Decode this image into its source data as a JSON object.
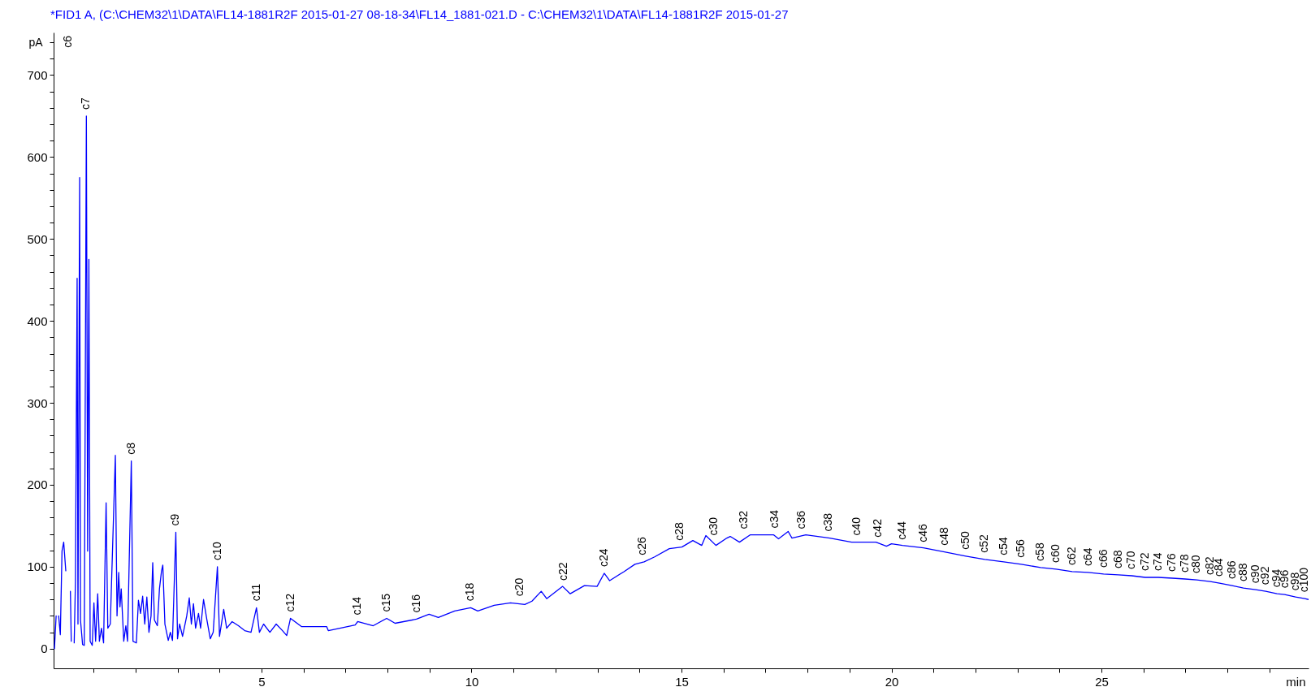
{
  "chart_data": {
    "type": "line",
    "title": "*FID1 A,  (C:\\CHEM32\\1\\DATA\\FL14-1881R2F 2015-01-27 08-18-34\\FL14_1881-021.D - C:\\CHEM32\\1\\DATA\\FL14-1881R2F 2015-01-27",
    "xlabel": "min",
    "ylabel": "pA",
    "x": [
      0.07,
      0.11,
      0.13,
      0.15,
      0.17,
      0.21,
      0.25,
      0.29,
      0.34,
      0.36,
      0.38,
      0.39,
      0.41,
      0.44,
      0.45,
      0.47,
      0.49,
      0.52,
      0.54,
      0.57,
      0.61,
      0.63,
      0.67,
      0.69,
      0.74,
      0.78,
      0.83,
      0.86,
      0.89,
      0.92,
      0.97,
      1.01,
      1.05,
      1.1,
      1.14,
      1.19,
      1.24,
      1.3,
      1.34,
      1.4,
      1.52,
      1.56,
      1.6,
      1.63,
      1.66,
      1.72,
      1.77,
      1.81,
      1.9,
      1.94,
      2.02,
      2.07,
      2.12,
      2.17,
      2.22,
      2.27,
      2.32,
      2.37,
      2.41,
      2.45,
      2.52,
      2.57,
      2.62,
      2.65,
      2.7,
      2.78,
      2.83,
      2.88,
      2.96,
      3.0,
      3.05,
      3.12,
      3.22,
      3.28,
      3.33,
      3.38,
      3.43,
      3.5,
      3.55,
      3.62,
      3.7,
      3.78,
      3.85,
      3.95,
      4.0,
      4.1,
      4.17,
      4.3,
      4.45,
      4.6,
      4.75,
      4.88,
      4.95,
      5.05,
      5.2,
      5.35,
      5.5,
      5.6,
      5.69,
      5.95,
      6.55,
      6.59,
      7.23,
      7.29,
      7.66,
      7.98,
      8.18,
      8.69,
      8.99,
      9.21,
      9.6,
      9.98,
      10.15,
      10.54,
      10.93,
      11.27,
      11.44,
      11.66,
      11.79,
      12.17,
      12.35,
      12.69,
      12.99,
      13.16,
      13.29,
      13.63,
      13.89,
      14.11,
      14.36,
      14.71,
      15.01,
      15.27,
      15.48,
      15.58,
      15.82,
      16.08,
      16.16,
      16.38,
      16.64,
      17.19,
      17.31,
      17.54,
      17.63,
      17.96,
      18.53,
      19.05,
      19.63,
      19.88,
      20.0,
      20.26,
      20.76,
      21.26,
      21.77,
      22.22,
      22.67,
      23.09,
      23.55,
      23.92,
      24.3,
      24.68,
      25.05,
      25.4,
      25.72,
      26.04,
      26.35,
      26.69,
      26.99,
      27.27,
      27.59,
      27.81,
      28.11,
      28.38,
      28.67,
      28.91,
      29.18,
      29.36,
      29.62,
      29.84,
      29.93
    ],
    "series": [
      {
        "color": "#0000ff",
        "values": [
          0,
          40,
          null,
          null,
          40,
          17,
          119,
          130,
          95,
          null,
          null,
          null,
          null,
          null,
          70,
          9,
          null,
          null,
          7,
          82,
          452,
          30,
          575,
          35,
          5,
          4,
          650,
          119,
          475,
          9,
          4,
          56,
          9,
          67,
          9,
          25,
          7,
          178,
          25,
          30,
          236,
          40,
          93,
          51,
          73,
          9,
          28,
          9,
          229,
          9,
          7,
          59,
          43,
          64,
          30,
          63,
          20,
          40,
          105,
          35,
          28,
          73,
          95,
          102,
          30,
          10,
          20,
          10,
          142,
          12,
          30,
          15,
          40,
          62,
          30,
          55,
          25,
          43,
          25,
          60,
          35,
          12,
          20,
          100,
          15,
          48,
          25,
          33,
          28,
          22,
          20,
          50,
          20,
          30,
          20,
          30,
          22,
          16,
          37,
          27,
          27,
          22,
          29,
          33,
          28,
          37,
          31,
          36,
          42,
          38,
          46,
          50,
          46,
          53,
          56,
          54,
          58,
          70,
          61,
          76,
          67,
          77,
          76,
          92,
          83,
          94,
          103,
          106,
          112,
          122,
          124,
          132,
          126,
          138,
          126,
          135,
          137,
          130,
          139,
          139,
          134,
          143,
          135,
          139,
          135,
          130,
          130,
          125,
          128,
          126,
          123,
          118,
          113,
          109,
          106,
          103,
          99,
          97,
          94,
          93,
          91,
          90,
          89,
          87,
          87,
          86,
          85,
          84,
          82,
          80,
          77,
          74,
          72,
          70,
          67,
          66,
          63,
          61,
          60
        ]
      }
    ],
    "xlim": [
      0.05,
      29.93
    ],
    "ylim": [
      -24,
      752
    ],
    "xticks": [
      {
        "value": 1,
        "label": null
      },
      {
        "value": 2,
        "label": null
      },
      {
        "value": 3,
        "label": null
      },
      {
        "value": 4,
        "label": null
      },
      5,
      {
        "value": 6,
        "label": null
      },
      {
        "value": 7,
        "label": null
      },
      {
        "value": 8,
        "label": null
      },
      {
        "value": 9,
        "label": null
      },
      10,
      {
        "value": 11,
        "label": null
      },
      {
        "value": 12,
        "label": null
      },
      {
        "value": 13,
        "label": null
      },
      {
        "value": 14,
        "label": null
      },
      15,
      {
        "value": 16,
        "label": null
      },
      {
        "value": 17,
        "label": null
      },
      {
        "value": 18,
        "label": null
      },
      {
        "value": 19,
        "label": null
      },
      20,
      {
        "value": 21,
        "label": null
      },
      {
        "value": 22,
        "label": null
      },
      {
        "value": 23,
        "label": null
      },
      {
        "value": 24,
        "label": null
      },
      25,
      {
        "value": 26,
        "label": null
      },
      {
        "value": 27,
        "label": null
      },
      {
        "value": 28,
        "label": null
      },
      {
        "value": 29,
        "label": null
      }
    ],
    "yticks": [
      0,
      {
        "value": 20,
        "label": null
      },
      {
        "value": 40,
        "label": null
      },
      {
        "value": 60,
        "label": null
      },
      {
        "value": 80,
        "label": null
      },
      100,
      {
        "value": 120,
        "label": null
      },
      {
        "value": 140,
        "label": null
      },
      {
        "value": 160,
        "label": null
      },
      {
        "value": 180,
        "label": null
      },
      200,
      {
        "value": 220,
        "label": null
      },
      {
        "value": 240,
        "label": null
      },
      {
        "value": 260,
        "label": null
      },
      {
        "value": 280,
        "label": null
      },
      300,
      {
        "value": 320,
        "label": null
      },
      {
        "value": 340,
        "label": null
      },
      {
        "value": 360,
        "label": null
      },
      {
        "value": 380,
        "label": null
      },
      400,
      {
        "value": 420,
        "label": null
      },
      {
        "value": 440,
        "label": null
      },
      {
        "value": 460,
        "label": null
      },
      {
        "value": 480,
        "label": null
      },
      500,
      {
        "value": 520,
        "label": null
      },
      {
        "value": 540,
        "label": null
      },
      {
        "value": 560,
        "label": null
      },
      {
        "value": 580,
        "label": null
      },
      600,
      {
        "value": 620,
        "label": null
      },
      {
        "value": 640,
        "label": null
      },
      {
        "value": 660,
        "label": null
      },
      {
        "value": 680,
        "label": null
      },
      700,
      {
        "value": 720,
        "label": null
      },
      {
        "value": 740,
        "label": null
      }
    ],
    "annotations": [
      "c6",
      {
        "text": "c7",
        "x": 0.83,
        "y": 650
      },
      {
        "text": "c8",
        "x": 1.9,
        "y": 229
      },
      {
        "text": "c9",
        "x": 2.96,
        "y": 142
      },
      {
        "text": "c10",
        "x": 3.95,
        "y": 100
      },
      {
        "text": "c11",
        "x": 4.88,
        "y": 50
      },
      {
        "text": "c12",
        "x": 5.69,
        "y": 37
      },
      {
        "text": "c14",
        "x": 7.29,
        "y": 33
      },
      {
        "text": "c15",
        "x": 7.98,
        "y": 37
      },
      {
        "text": "c16",
        "x": 8.69,
        "y": 36
      },
      {
        "text": "c18",
        "x": 9.98,
        "y": 50
      },
      {
        "text": "c20",
        "x": 11.16,
        "y": 56
      },
      {
        "text": "c22",
        "x": 12.2,
        "y": 75
      },
      {
        "text": "c24",
        "x": 13.17,
        "y": 92
      },
      {
        "text": "c26",
        "x": 14.07,
        "y": 106
      },
      {
        "text": "c28",
        "x": 14.97,
        "y": 124
      },
      {
        "text": "c30",
        "x": 15.77,
        "y": 130
      },
      {
        "text": "c32",
        "x": 16.48,
        "y": 138
      },
      {
        "text": "c34",
        "x": 17.22,
        "y": 139
      },
      {
        "text": "c36",
        "x": 17.86,
        "y": 138
      },
      {
        "text": "c38",
        "x": 18.5,
        "y": 135
      },
      {
        "text": "c40",
        "x": 19.18,
        "y": 130
      },
      {
        "text": "c42",
        "x": 19.68,
        "y": 128
      },
      {
        "text": "c44",
        "x": 20.26,
        "y": 125
      },
      {
        "text": "c46",
        "x": 20.76,
        "y": 122
      },
      {
        "text": "c48",
        "x": 21.26,
        "y": 118
      },
      {
        "text": "c50",
        "x": 21.77,
        "y": 113
      },
      {
        "text": "c52",
        "x": 22.22,
        "y": 109
      },
      {
        "text": "c54",
        "x": 22.67,
        "y": 106
      },
      {
        "text": "c56",
        "x": 23.09,
        "y": 103
      },
      {
        "text": "c58",
        "x": 23.55,
        "y": 99
      },
      {
        "text": "c60",
        "x": 23.92,
        "y": 97
      },
      {
        "text": "c62",
        "x": 24.3,
        "y": 94
      },
      {
        "text": "c64",
        "x": 24.68,
        "y": 93
      },
      {
        "text": "c66",
        "x": 25.05,
        "y": 91
      },
      {
        "text": "c68",
        "x": 25.4,
        "y": 90
      },
      {
        "text": "c70",
        "x": 25.72,
        "y": 89
      },
      {
        "text": "c72",
        "x": 26.04,
        "y": 87
      },
      {
        "text": "c74",
        "x": 26.35,
        "y": 87
      },
      {
        "text": "c76",
        "x": 26.69,
        "y": 86
      },
      {
        "text": "c78",
        "x": 26.99,
        "y": 85
      },
      {
        "text": "c80",
        "x": 27.27,
        "y": 84
      },
      {
        "text": "c82",
        "x": 27.59,
        "y": 82
      },
      {
        "text": "c84",
        "x": 27.81,
        "y": 80
      },
      {
        "text": "c86",
        "x": 28.11,
        "y": 77
      },
      {
        "text": "c88",
        "x": 28.38,
        "y": 74
      },
      {
        "text": "c90",
        "x": 28.67,
        "y": 72
      },
      {
        "text": "c92",
        "x": 28.91,
        "y": 70
      },
      {
        "text": "c94",
        "x": 29.18,
        "y": 67
      },
      {
        "text": "c96",
        "x": 29.36,
        "y": 66
      },
      {
        "text": "c98",
        "x": 29.62,
        "y": 63
      },
      {
        "text": "c100",
        "x": 29.84,
        "y": 61
      }
    ]
  }
}
